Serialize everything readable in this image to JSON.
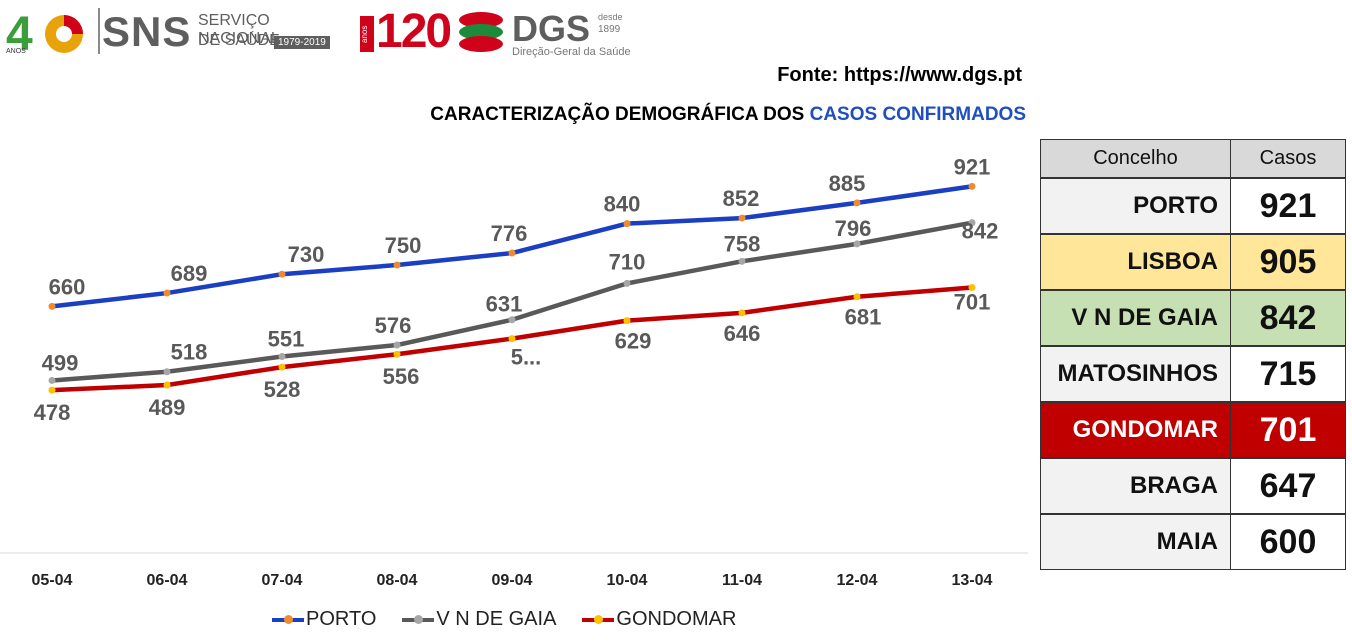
{
  "logos": {
    "forty": "40",
    "forty_small": "ANOS",
    "sns": "SNS",
    "sns_line1": "SERVIÇO NACIONAL",
    "sns_line2": "DE SAÚDE",
    "sns_years": "1979-2019",
    "anos120": "120",
    "anos_label": "anos",
    "dgs": "DGS",
    "dgs_desde": "desde",
    "dgs_year": "1899",
    "dgs_sub": "Direção-Geral da Saúde"
  },
  "source": "Fonte: https://www.dgs.pt",
  "heading": {
    "prefix": "CARACTERIZAÇÃO DEMOGRÁFICA DOS ",
    "highlight": "CASOS CONFIRMADOS"
  },
  "chart_data": {
    "type": "line",
    "categories": [
      "05-04",
      "06-04",
      "07-04",
      "08-04",
      "09-04",
      "10-04",
      "11-04",
      "12-04",
      "13-04"
    ],
    "series": [
      {
        "name": "PORTO",
        "values": [
          660,
          689,
          730,
          750,
          776,
          840,
          852,
          885,
          921
        ],
        "labels": [
          "660",
          "689",
          "730",
          "750",
          "776",
          "840",
          "852",
          "885",
          "921"
        ],
        "color": "#1b3fc2",
        "marker": "#ef8a2e"
      },
      {
        "name": "V N DE GAIA",
        "values": [
          499,
          518,
          551,
          576,
          631,
          710,
          758,
          796,
          842
        ],
        "labels": [
          "499",
          "518",
          "551",
          "576",
          "631",
          "710",
          "758",
          "796",
          "842"
        ],
        "color": "#595959",
        "marker": "#a6a6a6"
      },
      {
        "name": "GONDOMAR",
        "values": [
          478,
          489,
          528,
          556,
          590,
          629,
          646,
          681,
          701
        ],
        "labels": [
          "478",
          "489",
          "528",
          "556",
          "5...",
          "629",
          "646",
          "681",
          "701"
        ],
        "color": "#c00000",
        "marker": "#ffc000"
      }
    ],
    "ylim": [
      200,
      1000
    ],
    "grid": false,
    "legend": "bottom"
  },
  "table": {
    "headers": [
      "Concelho",
      "Casos"
    ],
    "rows": [
      {
        "name": "PORTO",
        "value": "921",
        "bg": "#f2f2f2",
        "value_bg": "#ffffff",
        "color": "#111111"
      },
      {
        "name": "LISBOA",
        "value": "905",
        "bg": "#ffe699",
        "value_bg": "#ffe699",
        "color": "#111111"
      },
      {
        "name": "V N DE GAIA",
        "value": "842",
        "bg": "#c6e0b4",
        "value_bg": "#c6e0b4",
        "color": "#111111"
      },
      {
        "name": "MATOSINHOS",
        "value": "715",
        "bg": "#f2f2f2",
        "value_bg": "#ffffff",
        "color": "#111111"
      },
      {
        "name": "GONDOMAR",
        "value": "701",
        "bg": "#c00000",
        "value_bg": "#c00000",
        "color": "#ffffff"
      },
      {
        "name": "BRAGA",
        "value": "647",
        "bg": "#f2f2f2",
        "value_bg": "#ffffff",
        "color": "#111111"
      },
      {
        "name": "MAIA",
        "value": "600",
        "bg": "#f2f2f2",
        "value_bg": "#ffffff",
        "color": "#111111"
      }
    ]
  }
}
